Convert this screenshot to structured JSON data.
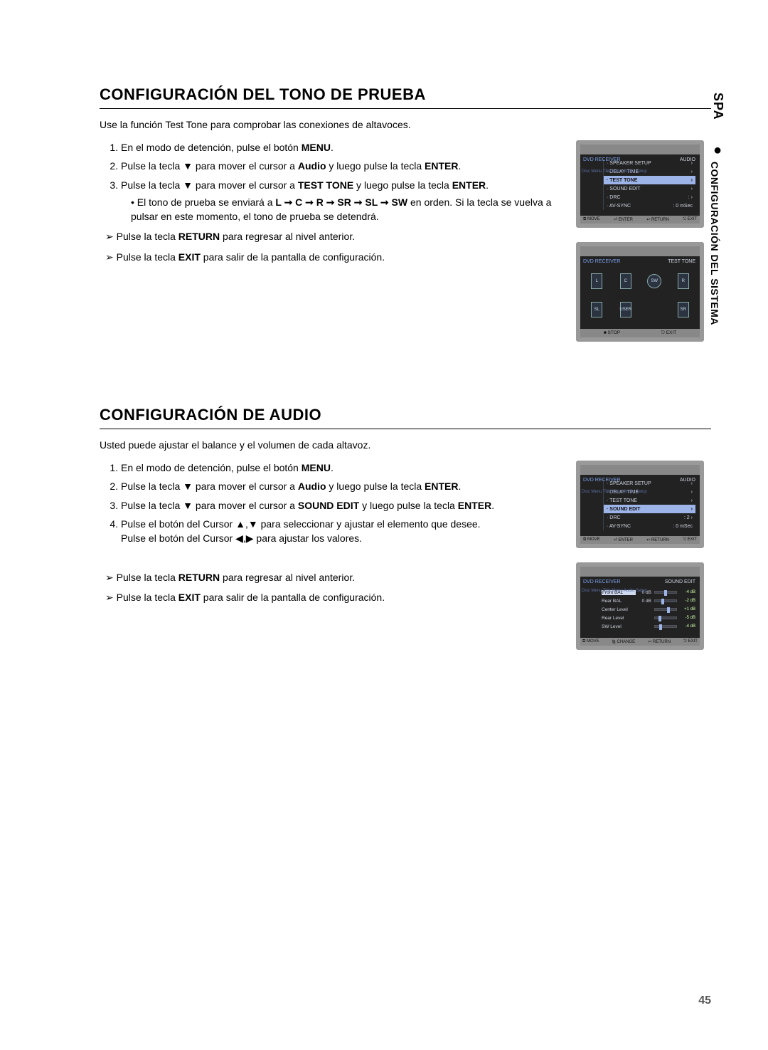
{
  "page_number": "45",
  "side_tab": "SPA",
  "side_section": "CONFIGURACIÓN DEL SISTEMA",
  "section1": {
    "title": "CONFIGURACIÓN DEL TONO DE PRUEBA",
    "intro": "Use la función Test Tone para comprobar las conexiones de altavoces.",
    "step1_a": "En el modo de detención, pulse el botón ",
    "step1_b": "MENU",
    "step1_c": ".",
    "step2_a": "Pulse la tecla ▼ para mover el cursor a ",
    "step2_b": "Audio",
    "step2_c": " y luego pulse la tecla ",
    "step2_d": "ENTER",
    "step2_e": ".",
    "step3_a": "Pulse la tecla ▼ para mover el cursor a ",
    "step3_b": "TEST TONE",
    "step3_c": " y luego pulse la tecla ",
    "step3_d": "ENTER",
    "step3_e": ".",
    "sub_a": "El tono de prueba se enviará a ",
    "sub_b": "L ➞ C ➞ R ➞ SR ➞ SL ➞ SW",
    "sub_c": " en orden. Si la tecla se vuelva a pulsar en este momento, el tono de prueba se detendrá.",
    "note1_a": "Pulse la tecla ",
    "note1_b": "RETURN",
    "note1_c": " para regresar al nivel anterior.",
    "note2_a": "Pulse la tecla ",
    "note2_b": "EXIT",
    "note2_c": " para salir de la pantalla de configuración."
  },
  "section2": {
    "title": "CONFIGURACIÓN DE AUDIO",
    "intro": "Usted puede ajustar el balance y el volumen de cada altavoz.",
    "step1_a": "En el modo de detención, pulse el botón ",
    "step1_b": "MENU",
    "step1_c": ".",
    "step2_a": "Pulse la tecla ▼ para mover el cursor a ",
    "step2_b": "Audio",
    "step2_c": " y luego pulse la tecla ",
    "step2_d": "ENTER",
    "step2_e": ".",
    "step3_a": "Pulse la tecla ▼ para mover el cursor a ",
    "step3_b": "SOUND EDIT",
    "step3_c": " y luego pulse la tecla ",
    "step3_d": "ENTER",
    "step3_e": ".",
    "step4_a": "Pulse el botón del Cursor ▲,▼ para seleccionar y ajustar el elemento que desee.",
    "step4_b": "Pulse el botón del Cursor ◀,▶ para ajustar los valores.",
    "note1_a": "Pulse la tecla ",
    "note1_b": "RETURN",
    "note1_c": " para regresar al nivel anterior.",
    "note2_a": "Pulse la tecla ",
    "note2_b": "EXIT",
    "note2_c": " para salir de la pantalla de configuración."
  },
  "osd_audio_menu": {
    "crumb": "DVD RECEIVER",
    "rtitle": "AUDIO",
    "left": "Disc Menu\nTitle Menu\nAudio\nSetup",
    "rows": [
      {
        "k": "SPEAKER SETUP",
        "v": "",
        "chev": "›",
        "hl": false
      },
      {
        "k": "DELAY TIME",
        "v": "",
        "chev": "›",
        "hl": false
      },
      {
        "k": "TEST TONE",
        "v": "",
        "chev": "›",
        "hl": true
      },
      {
        "k": "SOUND EDIT",
        "v": "",
        "chev": "›",
        "hl": false
      },
      {
        "k": "DRC",
        "v": ":",
        "chev": "›",
        "hl": false
      },
      {
        "k": "AV-SYNC",
        "v": ": 0 mSec",
        "chev": "",
        "hl": false
      }
    ],
    "foot": [
      "⧉ MOVE",
      "⏎ ENTER",
      "↩ RETURN",
      "⎋ EXIT"
    ]
  },
  "osd_testtone": {
    "crumb": "DVD RECEIVER",
    "rtitle": "TEST TONE",
    "speakers": [
      "L",
      "C",
      "SW",
      "R",
      "SL",
      "USER",
      "",
      "SR"
    ],
    "foot": [
      "■ STOP",
      "⎋ EXIT"
    ]
  },
  "osd_audio_menu2": {
    "crumb": "DVD RECEIVER",
    "rtitle": "AUDIO",
    "left": "Disc Menu\nTitle Menu\nAudio\nSetup",
    "rows": [
      {
        "k": "SPEAKER SETUP",
        "v": "",
        "chev": "›",
        "hl": false
      },
      {
        "k": "DELAY TIME",
        "v": "",
        "chev": "›",
        "hl": false
      },
      {
        "k": "TEST TONE",
        "v": "",
        "chev": "›",
        "hl": false
      },
      {
        "k": "SOUND EDIT",
        "v": "",
        "chev": "›",
        "hl": true
      },
      {
        "k": "DRC",
        "v": ": 2",
        "chev": "›",
        "hl": false
      },
      {
        "k": "AV-SYNC",
        "v": ": 0 mSec",
        "chev": "",
        "hl": false
      }
    ],
    "foot": [
      "⧉ MOVE",
      "⏎ ENTER",
      "↩ RETURN",
      "⎋ EXIT"
    ]
  },
  "osd_soundedit": {
    "crumb": "DVD RECEIVER",
    "rtitle": "SOUND EDIT",
    "left": "Disc Menu\nTitle Menu\nAudio\nSetup",
    "rows": [
      {
        "lab": "Front BAL",
        "lv": "0 dB",
        "pos": 42,
        "rv": "-4 dB",
        "hl": true
      },
      {
        "lab": "Rear BAL",
        "lv": "0 dB",
        "pos": 30,
        "rv": "-2 dB",
        "hl": false
      },
      {
        "lab": "Center Level",
        "lv": "",
        "pos": 55,
        "rv": "+1 dB",
        "hl": false
      },
      {
        "lab": "Rear Level",
        "lv": "",
        "pos": 15,
        "rv": "-5 dB",
        "hl": false
      },
      {
        "lab": "SW Level",
        "lv": "",
        "pos": 20,
        "rv": "-4 dB",
        "hl": false
      }
    ],
    "foot": [
      "⧉ MOVE",
      "⧎ CHANGE",
      "↩ RETURN",
      "⎋ EXIT"
    ]
  }
}
